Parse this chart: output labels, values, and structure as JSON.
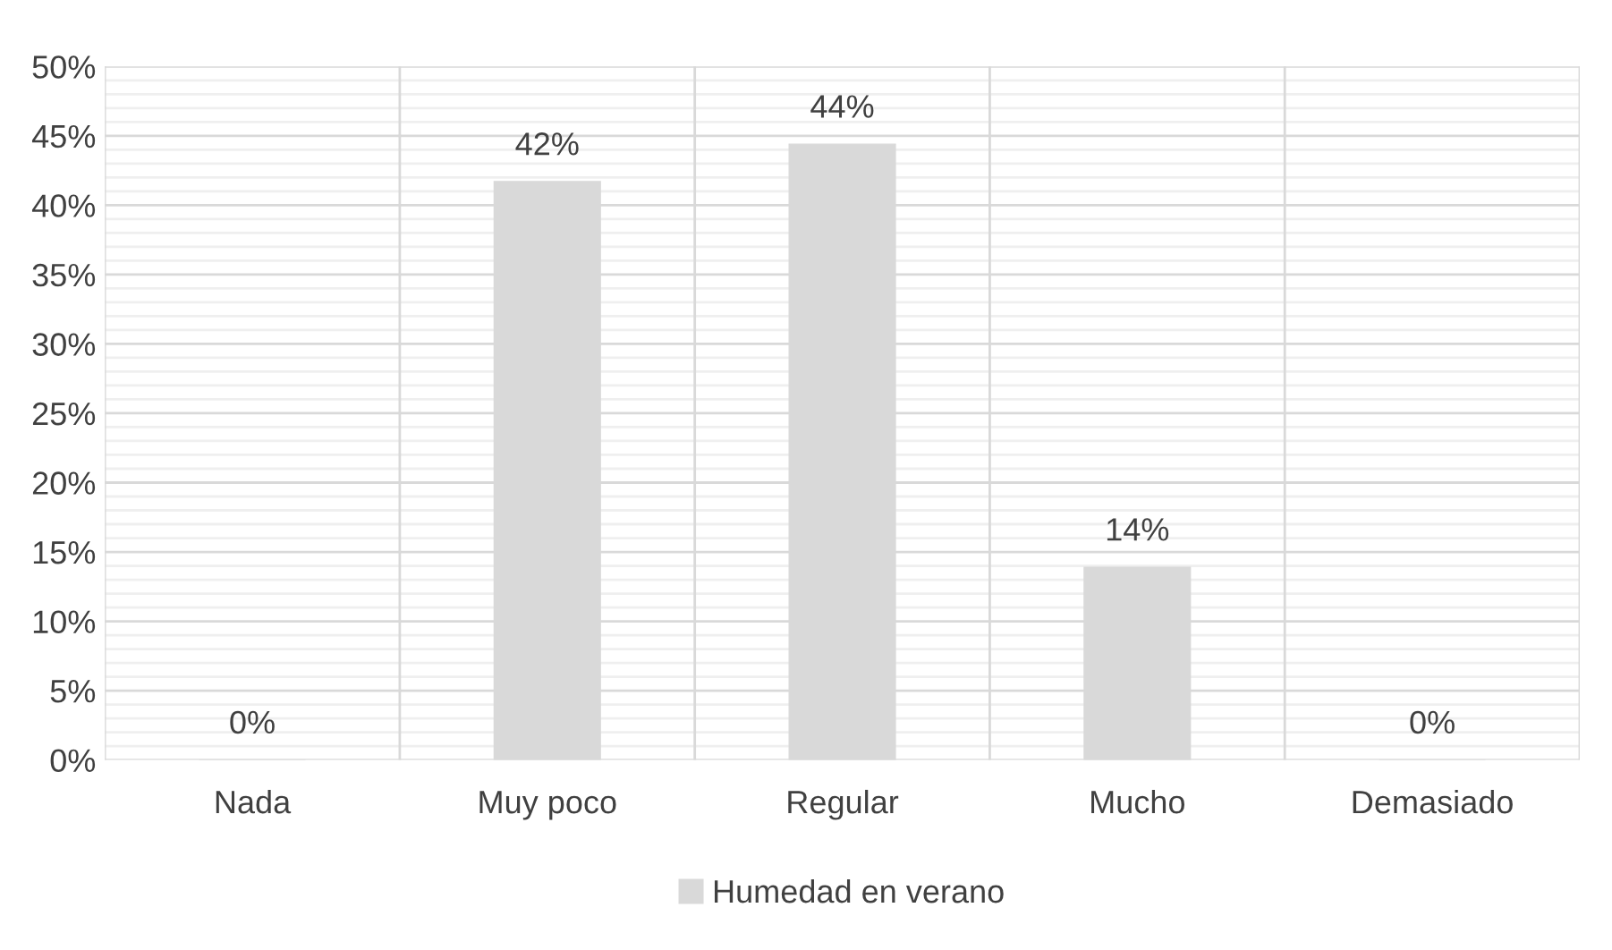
{
  "chart_data": {
    "type": "bar",
    "categories": [
      "Nada",
      "Muy poco",
      "Regular",
      "Mucho",
      "Demasiado"
    ],
    "series": [
      {
        "name": "Humedad en verano",
        "color": "#d9d9d9",
        "values": [
          0,
          41.7,
          44.4,
          13.9,
          0
        ],
        "value_labels": [
          "0%",
          "42%",
          "44%",
          "14%",
          "0%"
        ]
      }
    ],
    "ylim": [
      0,
      50
    ],
    "yticks": [
      {
        "value": 0,
        "label": "0%"
      },
      {
        "value": 1,
        "label": null
      },
      {
        "value": 2,
        "label": null
      },
      {
        "value": 3,
        "label": null
      },
      {
        "value": 4,
        "label": null
      },
      {
        "value": 5,
        "label": "5%"
      },
      {
        "value": 6,
        "label": null
      },
      {
        "value": 7,
        "label": null
      },
      {
        "value": 8,
        "label": null
      },
      {
        "value": 9,
        "label": null
      },
      {
        "value": 10,
        "label": "10%"
      },
      {
        "value": 11,
        "label": null
      },
      {
        "value": 12,
        "label": null
      },
      {
        "value": 13,
        "label": null
      },
      {
        "value": 14,
        "label": null
      },
      {
        "value": 15,
        "label": "15%"
      },
      {
        "value": 16,
        "label": null
      },
      {
        "value": 17,
        "label": null
      },
      {
        "value": 18,
        "label": null
      },
      {
        "value": 19,
        "label": null
      },
      {
        "value": 20,
        "label": "20%"
      },
      {
        "value": 21,
        "label": null
      },
      {
        "value": 22,
        "label": null
      },
      {
        "value": 23,
        "label": null
      },
      {
        "value": 24,
        "label": null
      },
      {
        "value": 25,
        "label": "25%"
      },
      {
        "value": 26,
        "label": null
      },
      {
        "value": 27,
        "label": null
      },
      {
        "value": 28,
        "label": null
      },
      {
        "value": 29,
        "label": null
      },
      {
        "value": 30,
        "label": "30%"
      },
      {
        "value": 31,
        "label": null
      },
      {
        "value": 32,
        "label": null
      },
      {
        "value": 33,
        "label": null
      },
      {
        "value": 34,
        "label": null
      },
      {
        "value": 35,
        "label": "35%"
      },
      {
        "value": 36,
        "label": null
      },
      {
        "value": 37,
        "label": null
      },
      {
        "value": 38,
        "label": null
      },
      {
        "value": 39,
        "label": null
      },
      {
        "value": 40,
        "label": "40%"
      },
      {
        "value": 41,
        "label": null
      },
      {
        "value": 42,
        "label": null
      },
      {
        "value": 43,
        "label": null
      },
      {
        "value": 44,
        "label": null
      },
      {
        "value": 45,
        "label": "45%"
      },
      {
        "value": 46,
        "label": null
      },
      {
        "value": 47,
        "label": null
      },
      {
        "value": 48,
        "label": null
      },
      {
        "value": 49,
        "label": null
      },
      {
        "value": 50,
        "label": "50%"
      }
    ],
    "grid": true,
    "legend": "bottom"
  }
}
